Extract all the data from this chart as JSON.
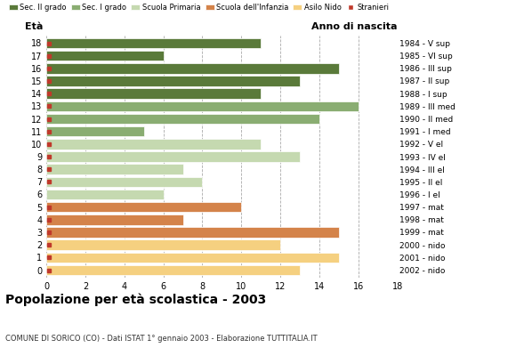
{
  "ages": [
    18,
    17,
    16,
    15,
    14,
    13,
    12,
    11,
    10,
    9,
    8,
    7,
    6,
    5,
    4,
    3,
    2,
    1,
    0
  ],
  "anno_nascita_labels": [
    "1984 - V sup",
    "1985 - VI sup",
    "1986 - III sup",
    "1987 - II sup",
    "1988 - I sup",
    "1989 - III med",
    "1990 - II med",
    "1991 - I med",
    "1992 - V el",
    "1993 - IV el",
    "1994 - III el",
    "1995 - II el",
    "1996 - I el",
    "1997 - mat",
    "1998 - mat",
    "1999 - mat",
    "2000 - nido",
    "2001 - nido",
    "2002 - nido"
  ],
  "values": [
    11,
    6,
    15,
    13,
    11,
    16,
    14,
    5,
    11,
    13,
    7,
    8,
    6,
    10,
    7,
    15,
    12,
    15,
    13
  ],
  "stranieri": [
    1,
    1,
    1,
    1,
    1,
    1,
    1,
    1,
    1,
    1,
    1,
    1,
    0,
    1,
    1,
    1,
    1,
    1,
    1
  ],
  "stranieri_x": [
    0,
    0,
    0,
    0,
    0,
    0,
    0,
    0,
    0,
    0,
    0,
    0,
    3,
    0,
    0,
    0,
    0,
    0,
    0
  ],
  "colors": [
    "#5a7a3a",
    "#5a7a3a",
    "#5a7a3a",
    "#5a7a3a",
    "#5a7a3a",
    "#8aad72",
    "#8aad72",
    "#8aad72",
    "#c5d9b0",
    "#c5d9b0",
    "#c5d9b0",
    "#c5d9b0",
    "#c5d9b0",
    "#d4834a",
    "#d4834a",
    "#d4834a",
    "#f5d080",
    "#f5d080",
    "#f5d080"
  ],
  "legend_labels": [
    "Sec. II grado",
    "Sec. I grado",
    "Scuola Primaria",
    "Scuola dell'Infanzia",
    "Asilo Nido",
    "Stranieri"
  ],
  "legend_colors": [
    "#5a7a3a",
    "#8aad72",
    "#c5d9b0",
    "#d4834a",
    "#f5d080",
    "#c0392b"
  ],
  "title": "Popolazione per età scolastica - 2003",
  "subtitle": "COMUNE DI SORICO (CO) - Dati ISTAT 1° gennaio 2003 - Elaborazione TUTTITALIA.IT",
  "xlabel_eta": "Età",
  "xlabel_anno": "Anno di nascita",
  "xlim": [
    0,
    18
  ],
  "stranieri_color": "#c0392b",
  "background_color": "#ffffff",
  "bar_height": 0.82
}
